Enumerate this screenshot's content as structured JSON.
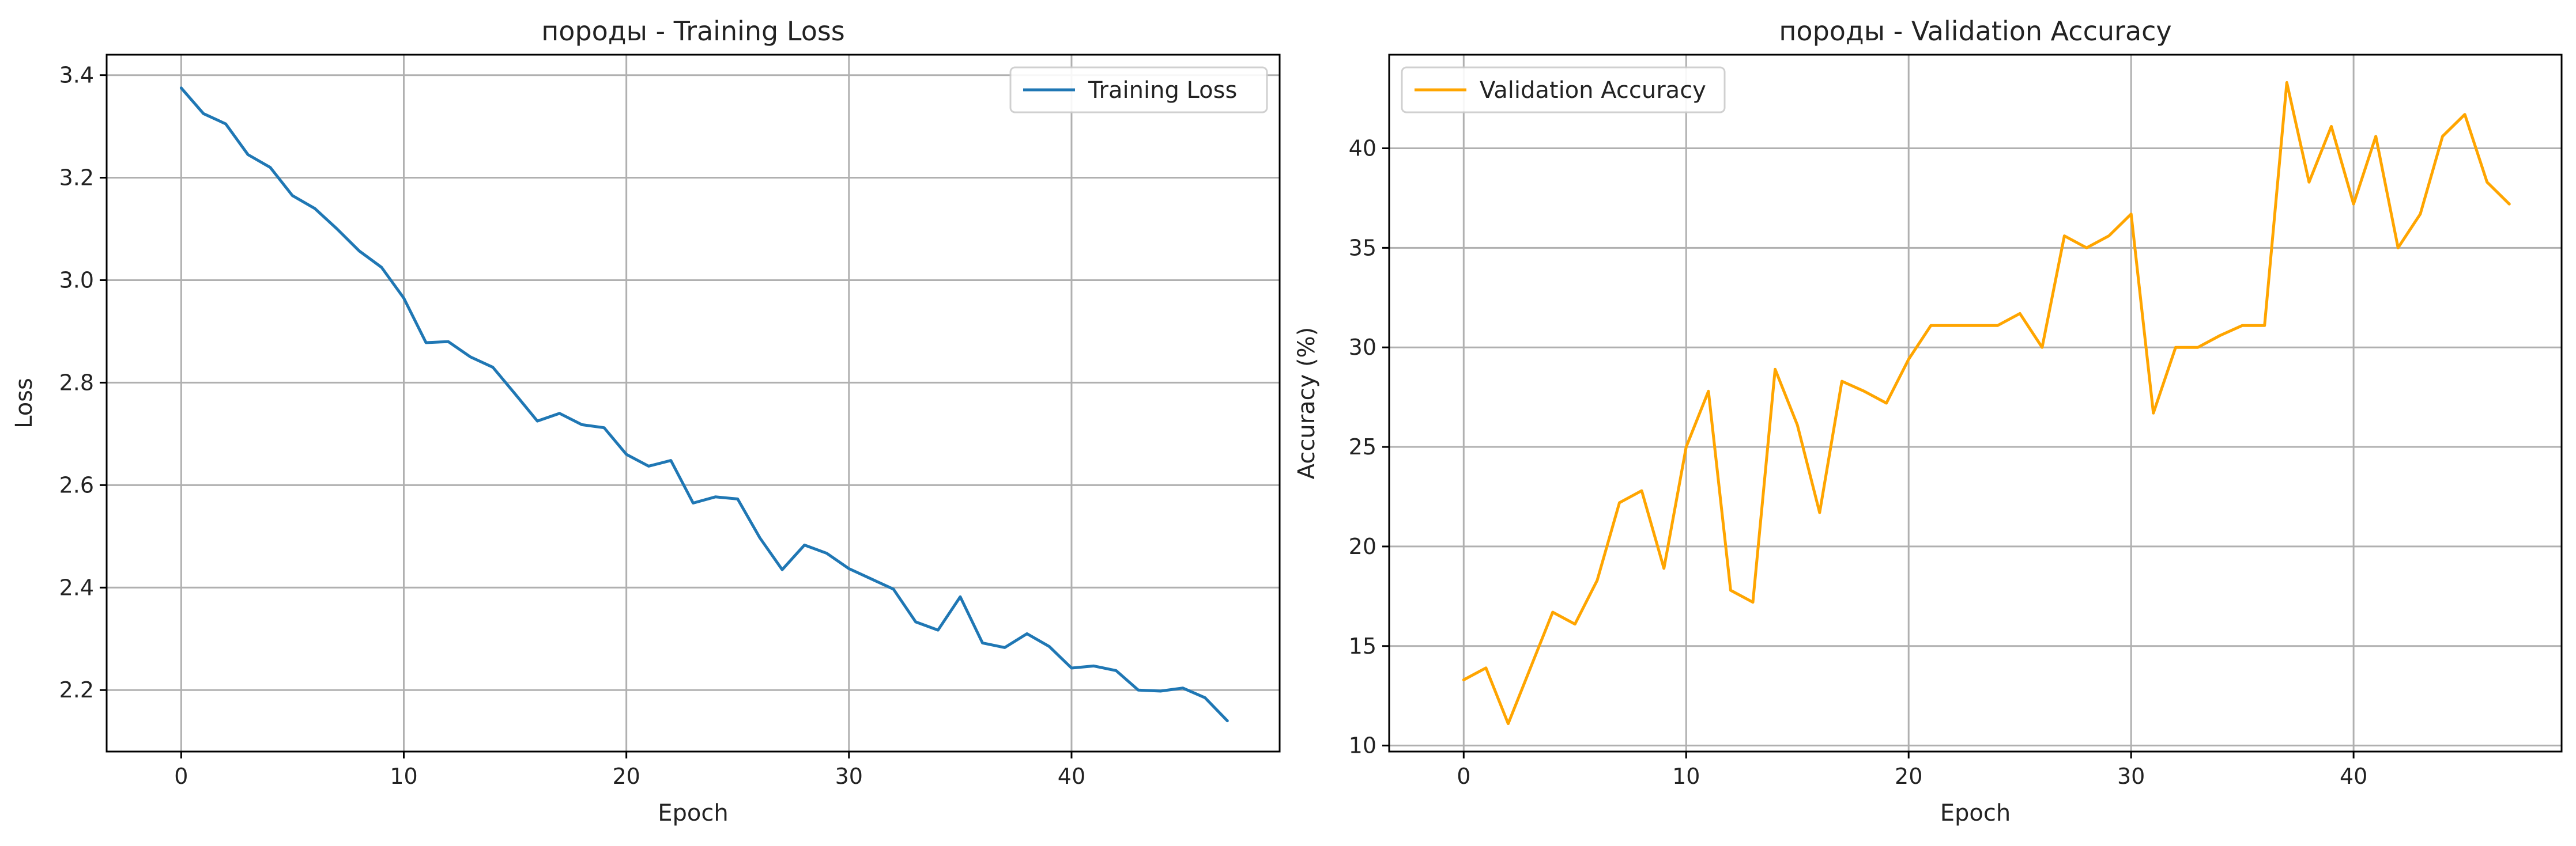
{
  "chart_data": [
    {
      "type": "line",
      "title": "породы - Training Loss",
      "xlabel": "Epoch",
      "ylabel": "Loss",
      "xlim": [
        -3.35,
        49.35
      ],
      "ylim": [
        2.08,
        3.44
      ],
      "xticks": [
        0,
        10,
        20,
        30,
        40
      ],
      "yticks": [
        2.2,
        2.4,
        2.6,
        2.8,
        3.0,
        3.2,
        3.4
      ],
      "ytick_labels": [
        "2.2",
        "2.4",
        "2.6",
        "2.8",
        "3.0",
        "3.2",
        "3.4"
      ],
      "grid": true,
      "legend_position": "top-right",
      "color": "#1f77b4",
      "series": [
        {
          "name": "Training Loss",
          "x": [
            0,
            1,
            2,
            3,
            4,
            5,
            6,
            7,
            8,
            9,
            10,
            11,
            12,
            13,
            14,
            15,
            16,
            17,
            18,
            19,
            20,
            21,
            22,
            23,
            24,
            25,
            26,
            27,
            28,
            29,
            30,
            31,
            32,
            33,
            34,
            35,
            36,
            37,
            38,
            39,
            40,
            41,
            42,
            43,
            44,
            45,
            46,
            47
          ],
          "values": [
            3.375,
            3.325,
            3.305,
            3.245,
            3.22,
            3.165,
            3.14,
            3.1,
            3.057,
            3.025,
            2.965,
            2.878,
            2.88,
            2.85,
            2.83,
            2.778,
            2.725,
            2.74,
            2.718,
            2.712,
            2.66,
            2.637,
            2.648,
            2.565,
            2.577,
            2.573,
            2.497,
            2.435,
            2.483,
            2.467,
            2.437,
            2.417,
            2.397,
            2.333,
            2.317,
            2.382,
            2.292,
            2.283,
            2.31,
            2.285,
            2.243,
            2.247,
            2.238,
            2.2,
            2.198,
            2.204,
            2.185,
            2.14
          ]
        }
      ]
    },
    {
      "type": "line",
      "title": "породы - Validation Accuracy",
      "xlabel": "Epoch",
      "ylabel": "Accuracy (%)",
      "xlim": [
        -3.35,
        49.35
      ],
      "ylim": [
        9.7,
        44.7
      ],
      "xticks": [
        0,
        10,
        20,
        30,
        40
      ],
      "yticks": [
        10,
        15,
        20,
        25,
        30,
        35,
        40
      ],
      "ytick_labels": [
        "10",
        "15",
        "20",
        "25",
        "30",
        "35",
        "40"
      ],
      "grid": true,
      "legend_position": "top-left",
      "color": "#ffa500",
      "series": [
        {
          "name": "Validation Accuracy",
          "x": [
            0,
            1,
            2,
            3,
            4,
            5,
            6,
            7,
            8,
            9,
            10,
            11,
            12,
            13,
            14,
            15,
            16,
            17,
            18,
            19,
            20,
            21,
            22,
            23,
            24,
            25,
            26,
            27,
            28,
            29,
            30,
            31,
            32,
            33,
            34,
            35,
            36,
            37,
            38,
            39,
            40,
            41,
            42,
            43,
            44,
            45,
            46,
            47
          ],
          "values": [
            13.3,
            13.9,
            11.1,
            13.9,
            16.7,
            16.1,
            18.3,
            22.2,
            22.8,
            18.9,
            25.0,
            27.8,
            17.8,
            17.2,
            28.9,
            26.1,
            21.7,
            28.3,
            27.8,
            27.2,
            29.4,
            31.1,
            31.1,
            31.1,
            31.1,
            31.7,
            30.0,
            35.6,
            35.0,
            35.6,
            36.7,
            26.7,
            30.0,
            30.0,
            30.6,
            31.1,
            31.1,
            43.3,
            38.3,
            41.1,
            37.2,
            40.6,
            35.0,
            36.7,
            40.6,
            41.7,
            38.3,
            37.2
          ]
        }
      ]
    }
  ]
}
